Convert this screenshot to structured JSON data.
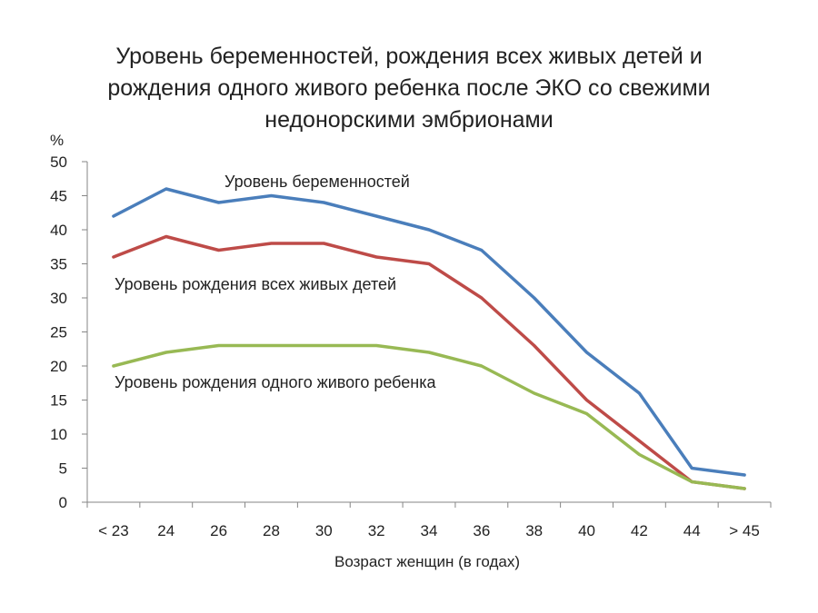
{
  "chart_data": {
    "type": "line",
    "title_lines": [
      "Уровень беременностей, рождения всех живых детей и",
      "рождения одного живого ребенка после ЭКО со  свежими",
      "недонорскими эмбрионами"
    ],
    "xlabel": "Возраст женщин (в годах)",
    "ylabel": "%",
    "ylim": [
      0,
      50
    ],
    "yticks": [
      0,
      5,
      10,
      15,
      20,
      25,
      30,
      35,
      40,
      45,
      50
    ],
    "categories": [
      "< 23",
      "24",
      "26",
      "28",
      "30",
      "32",
      "34",
      "36",
      "38",
      "40",
      "42",
      "44",
      "> 45"
    ],
    "grid": false,
    "legend": "inline labels",
    "series": [
      {
        "name": "Уровень беременностей",
        "color": "#4a7ebb",
        "values": [
          42,
          46,
          44,
          45,
          44,
          42,
          40,
          37,
          30,
          22,
          16,
          5,
          4
        ]
      },
      {
        "name": "Уровень рождения всех живых детей",
        "color": "#be4b48",
        "values": [
          36,
          39,
          37,
          38,
          38,
          36,
          35,
          30,
          23,
          15,
          9,
          3,
          2
        ]
      },
      {
        "name": "Уровень рождения одного живого ребенка",
        "color": "#98b954",
        "values": [
          20,
          22,
          23,
          23,
          23,
          23,
          22,
          20,
          16,
          13,
          7,
          3,
          2
        ]
      }
    ]
  }
}
